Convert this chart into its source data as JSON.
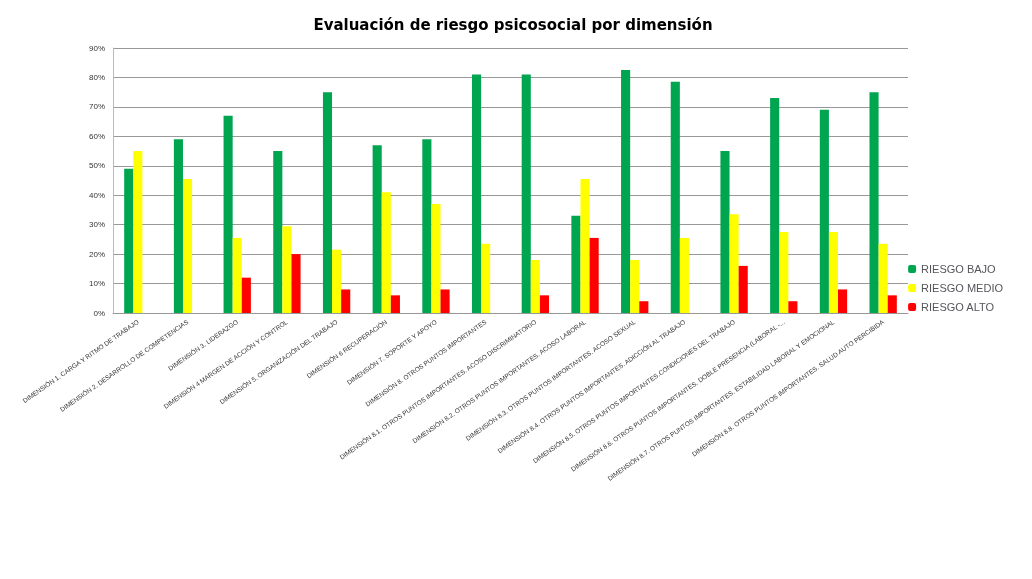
{
  "chart_data": {
    "type": "bar",
    "title": "Evaluación de riesgo psicosocial por dimensión",
    "categories": [
      "DIMENSIÓN 1. CARGA Y RITMO DE TRABAJO",
      "DIMENSIÓN 2. DESARROLLO DE COMPETENCIAS",
      "DIMENSIÓN 3. LIDERAZGO",
      "DIMENSIÓN 4 MARGEN DE ACCIÓN Y CONTROL",
      "DIMENSIÓN 5. ORGANIZACIÓN DEL TRABAJO",
      "DIMENSIÓN 6 RECUPERACIÓN",
      "DIMENSIÓN 7. SOPORTE Y APOYO",
      "DIMENSIÓN 8. OTROS PUNTOS IMPORTANTES",
      "DIMENSIÓN 8.1. OTROS PUNTOS IMPORTANTES. ACOSO DISCRIMINATORIO",
      "DIMENSIÓN 8.2. OTROS PUNTOS IMPORTANTES. ACOSO LABORAL",
      "DIMENSIÓN 8.3. OTROS PUNTOS IMPORTANTES. ACOSO SEXUAL",
      "DIMENSIÓN 8.4. OTROS PUNTOS IMPORTANTES. ADICCIÓN AL TRABAJO",
      "DIMENSIÓN 8.5. OTROS PUNTOS IMPORTANTES.CONDICIONES DEL TRABAJO",
      "DIMENSIÓN 8.6. OTROS PUNTOS IMPORTANTES. DOBLE PRESENCIA (LABORAL -...",
      "DIMENSIÓN 8.7. OTROS PUNTOS IMPORTANTES. ESTABILIDAD LABORAL Y EMOCIONAL",
      "DIMENSIÓN 8.8. OTROS PUNTOS IMPORTANTES. SALUD AUTO PERCIBIDA"
    ],
    "series": [
      {
        "name": "RIESGO BAJO",
        "color": "#00a550",
        "values": [
          49,
          59,
          67,
          55,
          75,
          57,
          59,
          81,
          81,
          33,
          82.5,
          78.5,
          55,
          73,
          69,
          75
        ]
      },
      {
        "name": "RIESGO MEDIO",
        "color": "#ffff00",
        "values": [
          55,
          45.5,
          25.5,
          29.5,
          21.5,
          41,
          37,
          23.5,
          18,
          45.5,
          18,
          25.5,
          33.5,
          27.5,
          27.5,
          23.5
        ]
      },
      {
        "name": "RIESGO ALTO",
        "color": "#ff0000",
        "values": [
          0,
          0,
          12,
          20,
          8,
          6,
          8,
          0,
          6,
          25.5,
          4,
          0,
          16,
          4,
          8,
          6
        ]
      }
    ],
    "ylim": [
      0,
      90
    ],
    "yticks": [
      {
        "value": 0,
        "label": "0%"
      },
      {
        "value": 10,
        "label": "10%"
      },
      {
        "value": 20,
        "label": "20%"
      },
      {
        "value": 30,
        "label": "30%"
      },
      {
        "value": 40,
        "label": "40%"
      },
      {
        "value": 50,
        "label": "50%"
      },
      {
        "value": 60,
        "label": "60%"
      },
      {
        "value": 70,
        "label": "70%"
      },
      {
        "value": 80,
        "label": "80%"
      },
      {
        "value": 90,
        "label": "90%"
      }
    ],
    "grid": "y",
    "legend": "right"
  }
}
